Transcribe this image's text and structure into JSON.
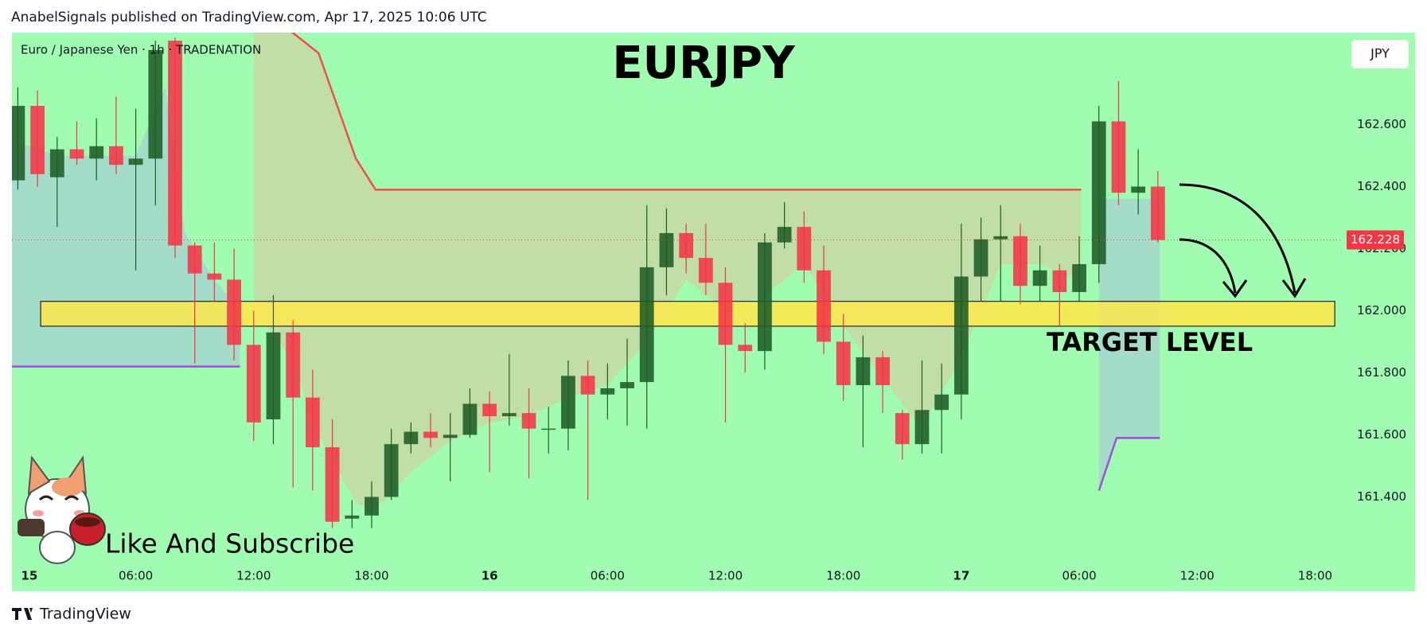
{
  "header": {
    "published": "AnabelSignals published on TradingView.com, Apr 17, 2025 10:06 UTC",
    "footer": "TradingView"
  },
  "chart_data": {
    "type": "candlestick",
    "title": "EURJPY",
    "symbol": "Euro / Japanese Yen · 1h · TRADENATION",
    "currency": "JPY",
    "caption": "Like And Subscribe",
    "x": [
      0,
      1,
      2,
      3,
      4,
      5,
      6,
      7,
      8,
      9,
      10,
      11,
      12,
      13,
      14,
      15,
      16,
      17,
      18,
      19,
      20,
      21,
      22,
      23,
      24,
      25,
      26,
      27,
      28,
      29,
      30,
      31,
      32,
      33,
      34,
      35,
      36,
      37,
      38,
      39,
      40,
      41,
      42,
      43,
      44,
      45,
      46,
      47,
      48,
      49,
      50,
      51,
      52,
      53,
      54,
      55,
      56,
      57,
      58
    ],
    "open": [
      162.42,
      162.66,
      162.43,
      162.52,
      162.49,
      162.53,
      162.47,
      162.49,
      162.87,
      162.21,
      162.12,
      162.1,
      161.89,
      161.65,
      161.93,
      161.72,
      161.56,
      161.33,
      161.34,
      161.4,
      161.57,
      161.61,
      161.59,
      161.6,
      161.7,
      161.66,
      161.67,
      161.62,
      161.62,
      161.79,
      161.73,
      161.75,
      161.77,
      162.14,
      162.25,
      162.17,
      162.09,
      161.89,
      161.87,
      162.22,
      162.27,
      162.13,
      161.9,
      161.76,
      161.85,
      161.67,
      161.57,
      161.68,
      161.73,
      162.11,
      162.23,
      162.24,
      162.08,
      162.13,
      162.06,
      162.15,
      162.61,
      162.38,
      162.4
    ],
    "high": [
      162.72,
      162.71,
      162.56,
      162.61,
      162.62,
      162.69,
      162.65,
      162.87,
      162.88,
      162.22,
      162.22,
      162.2,
      162.0,
      162.05,
      161.97,
      161.81,
      161.65,
      161.39,
      161.45,
      161.62,
      161.64,
      161.67,
      161.67,
      161.75,
      161.74,
      161.86,
      161.75,
      161.69,
      161.84,
      161.84,
      161.83,
      161.91,
      162.34,
      162.33,
      162.28,
      162.28,
      162.14,
      161.96,
      162.25,
      162.35,
      162.32,
      162.21,
      161.99,
      161.92,
      161.87,
      161.68,
      161.84,
      161.83,
      162.28,
      162.3,
      162.34,
      162.28,
      162.21,
      162.15,
      162.24,
      162.66,
      162.74,
      162.52,
      162.45
    ],
    "low": [
      162.39,
      162.4,
      162.27,
      162.47,
      162.42,
      162.44,
      162.13,
      162.34,
      162.17,
      161.83,
      162.03,
      161.84,
      161.58,
      161.57,
      161.43,
      161.42,
      161.3,
      161.3,
      161.3,
      161.39,
      161.54,
      161.56,
      161.45,
      161.59,
      161.48,
      161.63,
      161.46,
      161.54,
      161.55,
      161.39,
      161.65,
      161.63,
      161.62,
      162.05,
      162.12,
      162.05,
      161.64,
      161.8,
      161.81,
      162.2,
      162.09,
      161.86,
      161.71,
      161.56,
      161.67,
      161.52,
      161.54,
      161.54,
      161.65,
      162.03,
      162.03,
      162.02,
      162.03,
      161.95,
      162.03,
      162.09,
      162.34,
      162.31,
      162.22
    ],
    "close": [
      162.66,
      162.44,
      162.52,
      162.49,
      162.53,
      162.47,
      162.49,
      162.84,
      162.21,
      162.12,
      162.1,
      161.89,
      161.64,
      161.93,
      161.72,
      161.56,
      161.32,
      161.34,
      161.4,
      161.57,
      161.61,
      161.59,
      161.6,
      161.7,
      161.66,
      161.67,
      161.62,
      161.62,
      161.79,
      161.73,
      161.75,
      161.77,
      162.14,
      162.25,
      162.17,
      162.09,
      161.89,
      161.87,
      162.22,
      162.27,
      162.13,
      161.9,
      161.76,
      161.85,
      161.76,
      161.57,
      161.68,
      161.73,
      162.11,
      162.23,
      162.24,
      162.08,
      162.13,
      162.06,
      162.15,
      162.61,
      162.38,
      162.4,
      162.228
    ],
    "up_color": "#1f5c26",
    "down_color": "#f23645",
    "last_price": 162.228,
    "xlim": [
      -0.3,
      67.4
    ],
    "ylim": [
      161.096,
      162.896
    ],
    "xticks": [
      {
        "value": 0,
        "label": "15"
      },
      {
        "value": 6,
        "label": "06:00"
      },
      {
        "value": 12,
        "label": "12:00"
      },
      {
        "value": 18,
        "label": "18:00"
      },
      {
        "value": 24,
        "label": "16"
      },
      {
        "value": 30,
        "label": "06:00"
      },
      {
        "value": 36,
        "label": "12:00"
      },
      {
        "value": 42,
        "label": "18:00"
      },
      {
        "value": 48,
        "label": "17"
      },
      {
        "value": 54,
        "label": "06:00"
      },
      {
        "value": 60,
        "label": "12:00"
      },
      {
        "value": 66,
        "label": "18:00"
      }
    ],
    "yticks": [
      {
        "value": 161.4,
        "label": "161.400"
      },
      {
        "value": 161.6,
        "label": "161.600"
      },
      {
        "value": 161.8,
        "label": "161.800"
      },
      {
        "value": 162.0,
        "label": "162.000"
      },
      {
        "value": 162.2,
        "label": "162.200"
      },
      {
        "value": 162.4,
        "label": "162.400"
      },
      {
        "value": 162.6,
        "label": "162.600"
      }
    ],
    "zone": {
      "label": "TARGET LEVEL",
      "from": 161.95,
      "to": 162.03,
      "x": [
        1.16,
        67.0
      ],
      "color": "#ffe84d"
    },
    "upper_line": {
      "x": [
        13.9,
        15.3,
        17.2,
        18.2,
        54.1
      ],
      "y": [
        162.9,
        162.83,
        162.49,
        162.39,
        162.39
      ],
      "color": "#f0504a"
    },
    "lower_line": {
      "x": [
        -0.3,
        11.3,
        null,
        55.0,
        55.9,
        58.1
      ],
      "y": [
        161.82,
        161.82,
        null,
        161.42,
        161.59,
        161.59
      ],
      "color": "#9c4fd6"
    },
    "shades": [
      {
        "color": "#d9c9a0",
        "x": [
          12,
          13.9,
          15.3,
          17.2,
          18.2,
          20,
          22,
          24,
          26,
          28,
          30,
          32,
          34,
          36,
          38,
          40,
          42,
          44,
          46,
          48,
          50,
          52,
          54.1
        ],
        "upper": [
          162.9,
          162.9,
          162.83,
          162.49,
          162.39,
          162.39,
          162.39,
          162.39,
          162.39,
          162.39,
          162.39,
          162.39,
          162.39,
          162.39,
          162.39,
          162.39,
          162.39,
          162.39,
          162.39,
          162.39,
          162.39,
          162.39,
          162.39
        ],
        "lower": [
          162.0,
          161.85,
          161.6,
          161.38,
          161.36,
          161.48,
          161.58,
          161.64,
          161.66,
          161.72,
          161.76,
          161.9,
          162.1,
          162.0,
          162.05,
          162.15,
          161.95,
          161.78,
          161.62,
          161.85,
          162.15,
          162.15,
          162.1
        ]
      },
      {
        "color": "#a9c4d8",
        "x": [
          -0.3,
          2,
          4,
          6,
          7.5,
          8.5,
          10,
          11.3
        ],
        "upper": [
          162.55,
          162.5,
          162.5,
          162.5,
          162.72,
          162.25,
          162.1,
          162.0
        ],
        "lower": [
          161.82,
          161.82,
          161.82,
          161.82,
          161.82,
          161.82,
          161.82,
          161.82
        ]
      },
      {
        "color": "#a9c4d8",
        "x": [
          55.0,
          55.9,
          58.1
        ],
        "upper": [
          162.36,
          162.36,
          162.36
        ],
        "lower": [
          161.42,
          161.59,
          161.59
        ]
      }
    ]
  }
}
